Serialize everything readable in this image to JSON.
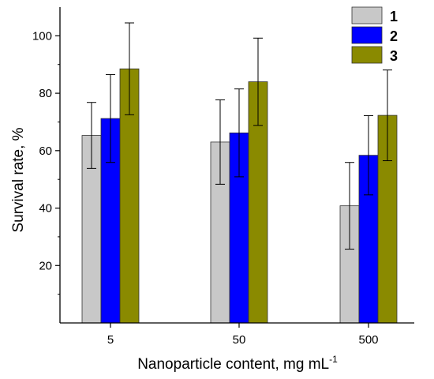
{
  "chart_data": {
    "type": "bar",
    "categories": [
      "5",
      "50",
      "500"
    ],
    "series": [
      {
        "name": "1",
        "color": "#c8c8c8",
        "values": [
          65.3,
          63.0,
          40.8
        ],
        "errors": [
          11.5,
          14.7,
          15.1
        ]
      },
      {
        "name": "2",
        "color": "#0000ff",
        "values": [
          71.2,
          66.2,
          58.4
        ],
        "errors": [
          15.3,
          15.3,
          13.8
        ]
      },
      {
        "name": "3",
        "color": "#8a8a00",
        "values": [
          88.5,
          84.0,
          72.3
        ],
        "errors": [
          16.0,
          15.2,
          15.8
        ]
      }
    ],
    "xlabel": "Nanoparticle content, mg mL",
    "xlabel_superscript": "-1",
    "ylabel": "Survival rate, %",
    "ylim": [
      0,
      110
    ],
    "yticks": [
      20,
      40,
      60,
      80,
      100
    ],
    "grid": false,
    "legend_position": "top-right"
  }
}
